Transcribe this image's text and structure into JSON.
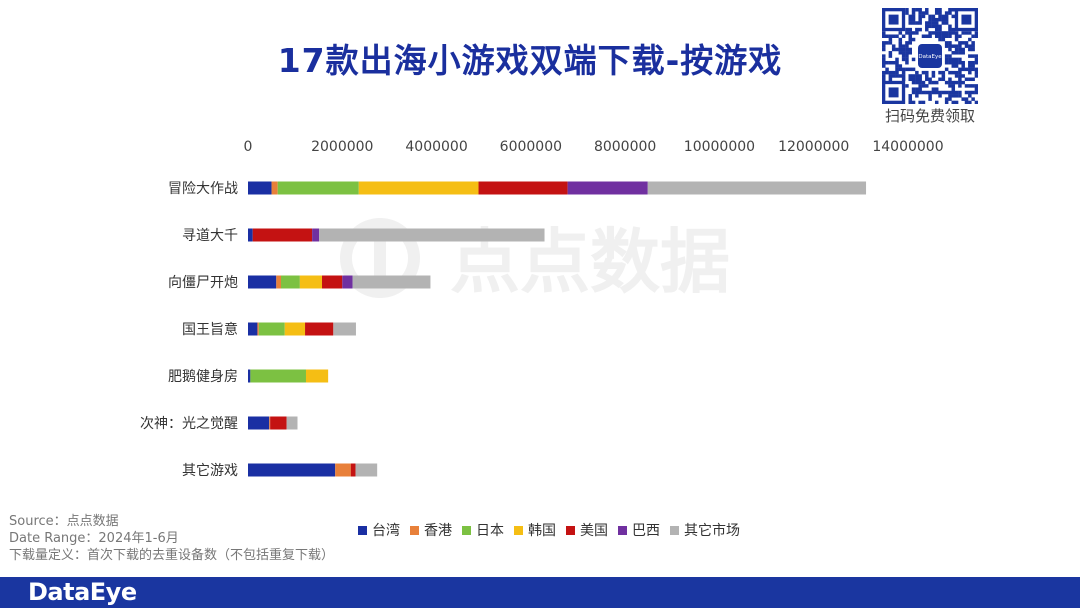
{
  "title": "17款出海小游戏双端下载-按游戏",
  "qr": {
    "caption": "扫码免费领取",
    "center_text": "DataEye"
  },
  "watermark": "点点数据",
  "notes": {
    "source": "Source：点点数据",
    "date_range": "Date Range：2024年1-6月",
    "definition": "下载量定义：首次下载的去重设备数（不包括重复下载）"
  },
  "footer": {
    "logo": "DataEye"
  },
  "colors": {
    "台湾": "#1a2fa3",
    "香港": "#e8803a",
    "日本": "#7cc142",
    "韩国": "#f5be14",
    "美国": "#c41212",
    "巴西": "#7030a0",
    "其它市场": "#b3b3b3"
  },
  "chart_data": {
    "type": "bar",
    "orientation": "horizontal",
    "stacked": true,
    "categories": [
      "冒险大作战",
      "寻道大千",
      "向僵尸开炮",
      "国王旨意",
      "肥鹅健身房",
      "次神：光之觉醒",
      "其它游戏"
    ],
    "xlim": [
      0,
      14000000
    ],
    "x_ticks": [
      "0",
      "2000000",
      "4000000",
      "6000000",
      "8000000",
      "10000000",
      "12000000",
      "14000000"
    ],
    "legend_position": "bottom",
    "grid": false,
    "series": [
      {
        "name": "台湾",
        "values": [
          500000,
          100000,
          600000,
          200000,
          50000,
          450000,
          1850000
        ]
      },
      {
        "name": "香港",
        "values": [
          130000,
          0,
          100000,
          30000,
          0,
          20000,
          330000
        ]
      },
      {
        "name": "日本",
        "values": [
          1720000,
          0,
          400000,
          550000,
          1180000,
          0,
          0
        ]
      },
      {
        "name": "韩国",
        "values": [
          2540000,
          0,
          470000,
          430000,
          470000,
          0,
          0
        ]
      },
      {
        "name": "美国",
        "values": [
          1890000,
          1260000,
          430000,
          600000,
          0,
          350000,
          100000
        ]
      },
      {
        "name": "巴西",
        "values": [
          1700000,
          150000,
          220000,
          0,
          0,
          0,
          0
        ]
      },
      {
        "name": "其它市场",
        "values": [
          4630000,
          4780000,
          1650000,
          480000,
          0,
          230000,
          460000
        ]
      }
    ]
  }
}
